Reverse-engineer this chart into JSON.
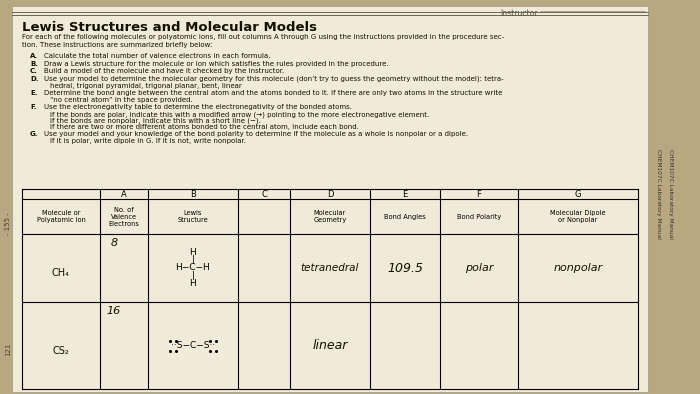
{
  "bg_color": "#b8a882",
  "paper_color": "#f0ead8",
  "title": "Lewis Structures and Molecular Models",
  "intro_text": "For each of the following molecules or polyatomic ions, fill out columns A through G using the instructions provided in the procedure sec-\ntion. These instructions are summarized briefly below:",
  "instructions": [
    [
      "A.",
      "Calculate the total number of valence electrons in each formula."
    ],
    [
      "B.",
      "Draw a Lewis structure for the molecule or ion which satisfies the rules provided in the procedure."
    ],
    [
      "C.",
      "Build a model of the molecule and have it checked by the instructor."
    ],
    [
      "D.",
      "Use your model to determine the molecular geometry for this molecule (don’t try to guess the geometry without the model): tetra-\n        hedral, trigonal pyramidal, trigonal planar, bent, linear"
    ],
    [
      "E.",
      "Determine the bond angle between the central atom and the atoms bonded to it. If there are only two atoms in the structure write\n        “no central atom” in the space provided."
    ],
    [
      "F.",
      "Use the electronegativity table to determine the electronegativity of the bonded atoms.\n        If the bonds are polar, indicate this with a modified arrow (→) pointing to the more electronegative element.\n        If the bonds are nonpolar, indicate this with a short line (−).\n        If there are two or more different atoms bonded to the central atom, include each bond."
    ],
    [
      "G.",
      "Use your model and your knowledge of the bond polarity to determine if the molecule as a whole is nonpolar or a dipole.\n        If it is polar, write dipole in G. If it is not, write nonpolar."
    ]
  ],
  "row1": {
    "molecule": "CH₄",
    "valence": "8",
    "geometry": "tetranedral",
    "bond_angle": "109.5",
    "bond_polarity": "polar",
    "dipole": "nonpolar"
  },
  "row2": {
    "molecule": "CS₂",
    "valence": "16",
    "geometry": "linear",
    "bond_angle": "",
    "bond_polarity": "",
    "dipole": ""
  },
  "sidebar_text": "CHEM107C Laboratory Manual",
  "page_num_top": "- 155 -",
  "page_num_bottom": "121"
}
